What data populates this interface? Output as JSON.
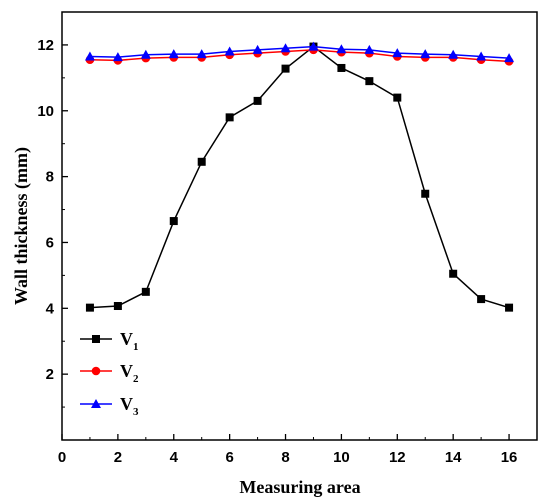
{
  "chart_data": {
    "type": "line",
    "title": "",
    "xlabel": "Measuring area",
    "ylabel": "Wall thickness (mm)",
    "xlim": [
      0,
      17
    ],
    "ylim": [
      0,
      13
    ],
    "xticks": [
      0,
      2,
      4,
      6,
      8,
      10,
      12,
      14,
      16
    ],
    "yticks": [
      2,
      4,
      6,
      8,
      10,
      12
    ],
    "x": [
      1,
      2,
      3,
      4,
      5,
      6,
      7,
      8,
      9,
      10,
      11,
      12,
      13,
      14,
      15,
      16
    ],
    "legend": "left-lower",
    "series": [
      {
        "name": "V",
        "sub": "1",
        "color": "#000000",
        "marker": "square",
        "values": [
          4.02,
          4.07,
          4.5,
          6.65,
          8.45,
          9.8,
          10.3,
          11.28,
          11.95,
          11.3,
          10.9,
          10.4,
          7.48,
          5.05,
          4.28,
          4.02
        ]
      },
      {
        "name": "V",
        "sub": "2",
        "color": "#ff0000",
        "marker": "circle",
        "values": [
          11.55,
          11.53,
          11.6,
          11.62,
          11.62,
          11.7,
          11.75,
          11.8,
          11.85,
          11.78,
          11.75,
          11.65,
          11.62,
          11.62,
          11.55,
          11.5
        ]
      },
      {
        "name": "V",
        "sub": "3",
        "color": "#0000ff",
        "marker": "triangle",
        "values": [
          11.65,
          11.63,
          11.7,
          11.72,
          11.72,
          11.8,
          11.85,
          11.9,
          11.95,
          11.87,
          11.85,
          11.75,
          11.72,
          11.7,
          11.65,
          11.6
        ]
      }
    ]
  }
}
